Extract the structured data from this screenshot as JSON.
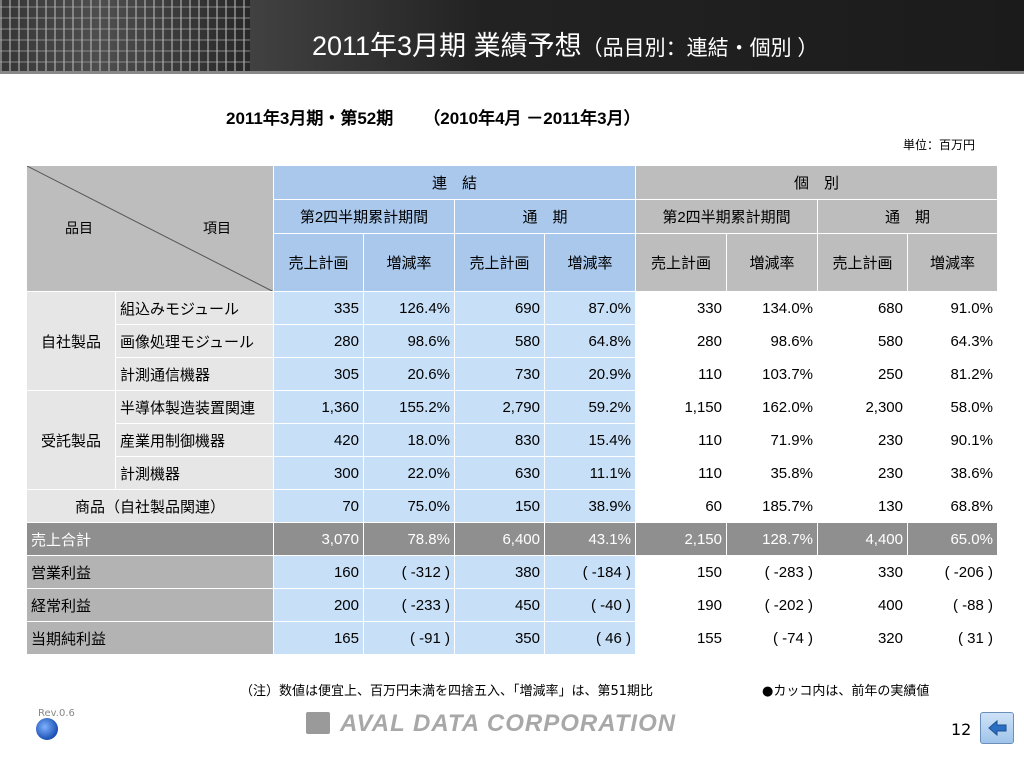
{
  "header": {
    "title_main": "2011年3月期 業績予想",
    "title_sub": "（品目別：連結・個別 ）"
  },
  "period": {
    "left": "2011年3月期・第52期",
    "right": "（2010年4月 －2011年3月）"
  },
  "unit": "単位：百万円",
  "table": {
    "corner": {
      "hinmoku": "品目",
      "komoku": "項目"
    },
    "group_consolidated": "連　結",
    "group_individual": "個　別",
    "period_h1": "第2四半期累計期間",
    "period_full": "通　期",
    "col_plan": "売上計画",
    "col_rate": "増減率",
    "groups": [
      {
        "name": "自社製品",
        "rows": [
          {
            "label": "組込みモジュール",
            "v": [
              "335",
              "126.4%",
              "690",
              "87.0%",
              "330",
              "134.0%",
              "680",
              "91.0%"
            ]
          },
          {
            "label": "画像処理モジュール",
            "v": [
              "280",
              "98.6%",
              "580",
              "64.8%",
              "280",
              "98.6%",
              "580",
              "64.3%"
            ]
          },
          {
            "label": "計測通信機器",
            "v": [
              "305",
              "20.6%",
              "730",
              "20.9%",
              "110",
              "103.7%",
              "250",
              "81.2%"
            ]
          }
        ]
      },
      {
        "name": "受託製品",
        "rows": [
          {
            "label": "半導体製造装置関連",
            "v": [
              "1,360",
              "155.2%",
              "2,790",
              "59.2%",
              "1,150",
              "162.0%",
              "2,300",
              "58.0%"
            ]
          },
          {
            "label": "産業用制御機器",
            "v": [
              "420",
              "18.0%",
              "830",
              "15.4%",
              "110",
              "71.9%",
              "230",
              "90.1%"
            ]
          },
          {
            "label": "計測機器",
            "v": [
              "300",
              "22.0%",
              "630",
              "11.1%",
              "110",
              "35.8%",
              "230",
              "38.6%"
            ]
          }
        ]
      }
    ],
    "shohin": {
      "label": "商品（自社製品関連）",
      "v": [
        "70",
        "75.0%",
        "150",
        "38.9%",
        "60",
        "185.7%",
        "130",
        "68.8%"
      ]
    },
    "total": {
      "label": "売上合計",
      "v": [
        "3,070",
        "78.8%",
        "6,400",
        "43.1%",
        "2,150",
        "128.7%",
        "4,400",
        "65.0%"
      ]
    },
    "profits": [
      {
        "label": "営業利益",
        "v": [
          "160",
          "( -312 )",
          "380",
          "( -184 )",
          "150",
          "( -283 )",
          "330",
          "( -206 )"
        ]
      },
      {
        "label": "経常利益",
        "v": [
          "200",
          "( -233 )",
          "450",
          "( -40 )",
          "190",
          "( -202 )",
          "400",
          "( -88 )"
        ]
      },
      {
        "label": "当期純利益",
        "v": [
          "165",
          "( -91 )",
          "350",
          "( 46 )",
          "155",
          "( -74 )",
          "320",
          "( 31 )"
        ]
      }
    ]
  },
  "footer": {
    "note": "（注）数値は便宜上、百万円未満を四捨五入、「増減率」は、第51期比",
    "note2": "●カッコ内は、前年の実績値",
    "rev": "Rev.0.6",
    "logo": "AVAL DATA CORPORATION",
    "page": "12"
  }
}
